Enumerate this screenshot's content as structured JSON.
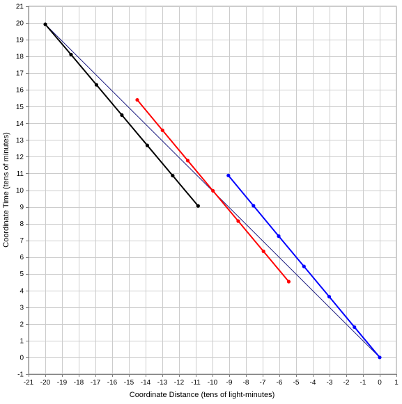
{
  "chart_data": {
    "type": "line",
    "title": "",
    "xlabel": "Coordinate Distance (tens of light-minutes)",
    "ylabel": "Coordinate Time (tens of minutes)",
    "xlim": [
      -21,
      1
    ],
    "ylim": [
      -1,
      21
    ],
    "x_ticks": [
      -21,
      -20,
      -19,
      -18,
      -17,
      -16,
      -15,
      -14,
      -13,
      -12,
      -11,
      -10,
      -9,
      -8,
      -7,
      -6,
      -5,
      -4,
      -3,
      -2,
      -1,
      0,
      1
    ],
    "y_ticks": [
      -1,
      0,
      1,
      2,
      3,
      4,
      5,
      6,
      7,
      8,
      9,
      10,
      11,
      12,
      13,
      14,
      15,
      16,
      17,
      18,
      19,
      20,
      21
    ],
    "grid": true,
    "legend": "none",
    "series": [
      {
        "color": "#1a1a80",
        "markers": false,
        "points": [
          [
            -20,
            19.92
          ],
          [
            0,
            0
          ]
        ]
      },
      {
        "color": "#000000",
        "markers": true,
        "points": [
          [
            -20,
            19.92
          ],
          [
            -18.46,
            18.11
          ],
          [
            -16.94,
            16.3
          ],
          [
            -15.42,
            14.49
          ],
          [
            -13.9,
            12.68
          ],
          [
            -12.38,
            10.87
          ],
          [
            -10.86,
            9.06
          ]
        ]
      },
      {
        "color": "#ff0000",
        "markers": true,
        "points": [
          [
            -14.5,
            15.4
          ],
          [
            -12.99,
            13.58
          ],
          [
            -11.48,
            11.77
          ],
          [
            -9.97,
            9.96
          ],
          [
            -8.46,
            8.15
          ],
          [
            -6.95,
            6.34
          ],
          [
            -5.44,
            4.53
          ]
        ]
      },
      {
        "color": "#0000ff",
        "markers": true,
        "points": [
          [
            -9.05,
            10.88
          ],
          [
            -7.55,
            9.07
          ],
          [
            -6.04,
            7.25
          ],
          [
            -4.53,
            5.44
          ],
          [
            -3.02,
            3.63
          ],
          [
            -1.51,
            1.81
          ],
          [
            0,
            0
          ]
        ]
      }
    ]
  }
}
